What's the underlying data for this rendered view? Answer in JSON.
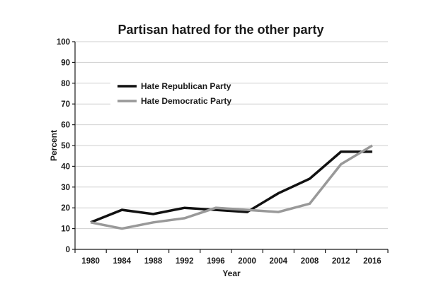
{
  "chart_data": {
    "type": "line",
    "title": "Partisan hatred for the other party",
    "xlabel": "Year",
    "ylabel": "Percent",
    "categories": [
      "1980",
      "1984",
      "1988",
      "1992",
      "1996",
      "2000",
      "2004",
      "2008",
      "2012",
      "2016"
    ],
    "ylim": [
      0,
      100
    ],
    "yticks": [
      0,
      10,
      20,
      30,
      40,
      50,
      60,
      70,
      80,
      90,
      100
    ],
    "grid": true,
    "legend_position": "top-left",
    "series": [
      {
        "name": "Hate Republican Party",
        "color": "#111111",
        "values": [
          13,
          19,
          17,
          20,
          19,
          18,
          27,
          34,
          47,
          47
        ]
      },
      {
        "name": "Hate Democratic Party",
        "color": "#999999",
        "values": [
          13,
          10,
          13,
          15,
          20,
          19,
          18,
          22,
          41,
          50
        ]
      }
    ]
  }
}
